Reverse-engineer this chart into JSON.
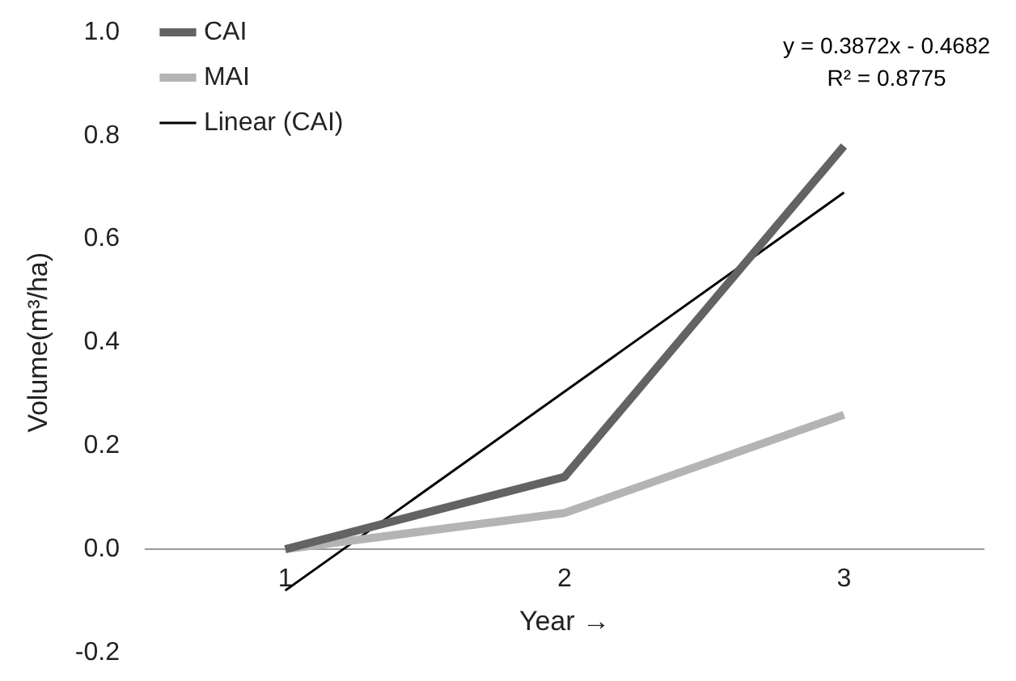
{
  "chart_data": {
    "type": "line",
    "xlabel": "Year →",
    "ylabel": "Volume(m³/ha)",
    "x": [
      1,
      2,
      3
    ],
    "xlim": [
      0.5,
      3.5
    ],
    "xticks": [
      1,
      2,
      3
    ],
    "ylim": [
      -0.2,
      1.0
    ],
    "yticks": [
      -0.2,
      {
        "value": 0,
        "label": "0.0"
      },
      0.2,
      0.4,
      0.6,
      0.8,
      {
        "value": 1,
        "label": "1.0"
      }
    ],
    "grid": false,
    "legend": "top left",
    "marker": "none",
    "series": [
      {
        "name": "CAI",
        "color": "#636363",
        "values": [
          0,
          0.14,
          0.78
        ]
      },
      {
        "name": "MAI",
        "color": "#b4b4b4",
        "values": [
          0,
          0.07,
          0.26
        ]
      },
      {
        "name": "Linear (CAI)",
        "color": "#000000",
        "x": [
          1,
          3
        ],
        "values": [
          -0.08,
          0.69
        ]
      }
    ],
    "annotations": [
      "y = 0.3872x - 0.4682",
      "R² = 0.8775"
    ]
  }
}
